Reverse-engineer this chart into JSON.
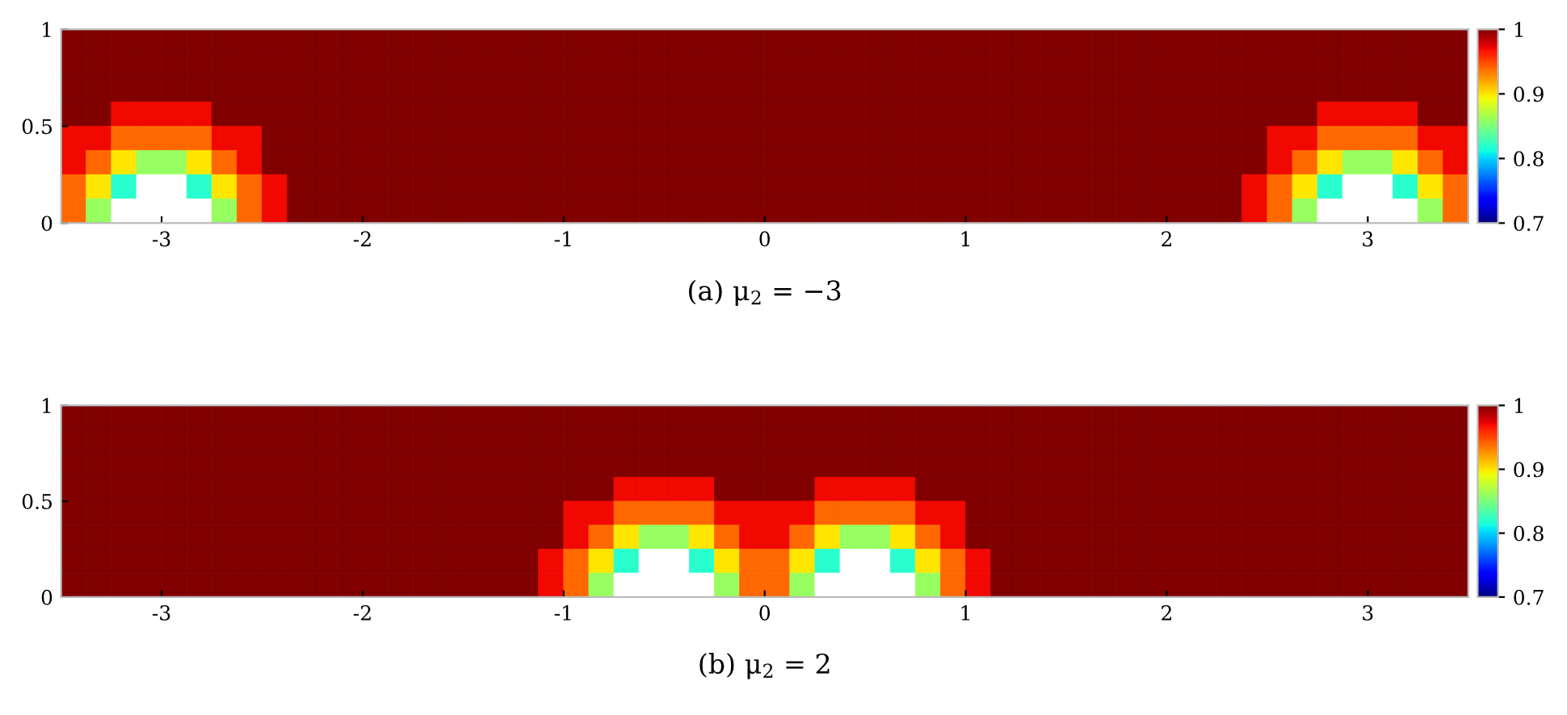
{
  "chart_data": [
    {
      "type": "heatmap",
      "title": "(a) μ$_{2}$ = −3",
      "xlim": [
        -3.5,
        3.5
      ],
      "xticks": [
        -3,
        -2,
        -1,
        0,
        1,
        2,
        3
      ],
      "ylim": [
        0,
        1
      ],
      "yticks": [
        0,
        0.5,
        1
      ],
      "clim": [
        0.7,
        1
      ],
      "cticks": [
        0.7,
        0.8,
        0.9,
        1
      ],
      "cells": [
        [
          1,
          1,
          1,
          1,
          1,
          1,
          1,
          1,
          1,
          1,
          1,
          1,
          1,
          1,
          1,
          1,
          1,
          1,
          1,
          1,
          1,
          1,
          1,
          1,
          1,
          1,
          1,
          1,
          1,
          1,
          1,
          1,
          1,
          1,
          1,
          1,
          1,
          1,
          1,
          1,
          1,
          1,
          1,
          1,
          1,
          1,
          1,
          1,
          1,
          1,
          1,
          1,
          1,
          1,
          1,
          1
        ],
        [
          1,
          1,
          1,
          1,
          1,
          1,
          1,
          1,
          1,
          1,
          1,
          1,
          1,
          1,
          1,
          1,
          1,
          1,
          1,
          1,
          1,
          1,
          1,
          1,
          1,
          1,
          1,
          1,
          1,
          1,
          1,
          1,
          1,
          1,
          1,
          1,
          1,
          1,
          1,
          1,
          1,
          1,
          1,
          1,
          1,
          1,
          1,
          1,
          1,
          1,
          1,
          1,
          1,
          1,
          1,
          1
        ],
        [
          1,
          1,
          1,
          1,
          1,
          1,
          1,
          1,
          1,
          1,
          1,
          1,
          1,
          1,
          1,
          1,
          1,
          1,
          1,
          1,
          1,
          1,
          1,
          1,
          1,
          1,
          1,
          1,
          1,
          1,
          1,
          1,
          1,
          1,
          1,
          1,
          1,
          1,
          1,
          1,
          1,
          1,
          1,
          1,
          1,
          1,
          1,
          1,
          1,
          1,
          1,
          1,
          1,
          1,
          1,
          1
        ],
        [
          1,
          1,
          0.97,
          0.97,
          0.97,
          0.97,
          1,
          1,
          1,
          1,
          1,
          1,
          1,
          1,
          1,
          1,
          1,
          1,
          1,
          1,
          1,
          1,
          1,
          1,
          1,
          1,
          1,
          1,
          1,
          1,
          1,
          1,
          1,
          1,
          1,
          1,
          1,
          1,
          1,
          1,
          1,
          1,
          1,
          1,
          1,
          1,
          1,
          1,
          1,
          1,
          0.97,
          0.97,
          0.97,
          0.97,
          1,
          1
        ],
        [
          0.97,
          0.97,
          0.94,
          0.94,
          0.94,
          0.94,
          0.97,
          0.97,
          1,
          1,
          1,
          1,
          1,
          1,
          1,
          1,
          1,
          1,
          1,
          1,
          1,
          1,
          1,
          1,
          1,
          1,
          1,
          1,
          1,
          1,
          1,
          1,
          1,
          1,
          1,
          1,
          1,
          1,
          1,
          1,
          1,
          1,
          1,
          1,
          1,
          1,
          1,
          1,
          0.97,
          0.97,
          0.94,
          0.94,
          0.94,
          0.94,
          0.97,
          0.97
        ],
        [
          0.97,
          0.94,
          0.9,
          0.86,
          0.86,
          0.9,
          0.94,
          0.97,
          1,
          1,
          1,
          1,
          1,
          1,
          1,
          1,
          1,
          1,
          1,
          1,
          1,
          1,
          1,
          1,
          1,
          1,
          1,
          1,
          1,
          1,
          1,
          1,
          1,
          1,
          1,
          1,
          1,
          1,
          1,
          1,
          1,
          1,
          1,
          1,
          1,
          1,
          1,
          1,
          0.97,
          0.94,
          0.9,
          0.86,
          0.86,
          0.9,
          0.94,
          0.97
        ],
        [
          0.94,
          0.9,
          0.82,
          null,
          null,
          0.82,
          0.9,
          0.94,
          0.97,
          1,
          1,
          1,
          1,
          1,
          1,
          1,
          1,
          1,
          1,
          1,
          1,
          1,
          1,
          1,
          1,
          1,
          1,
          1,
          1,
          1,
          1,
          1,
          1,
          1,
          1,
          1,
          1,
          1,
          1,
          1,
          1,
          1,
          1,
          1,
          1,
          1,
          1,
          0.97,
          0.94,
          0.9,
          0.82,
          null,
          null,
          0.82,
          0.9,
          0.94
        ],
        [
          0.94,
          0.86,
          null,
          null,
          null,
          null,
          0.86,
          0.94,
          0.97,
          1,
          1,
          1,
          1,
          1,
          1,
          1,
          1,
          1,
          1,
          1,
          1,
          1,
          1,
          1,
          1,
          1,
          1,
          1,
          1,
          1,
          1,
          1,
          1,
          1,
          1,
          1,
          1,
          1,
          1,
          1,
          1,
          1,
          1,
          1,
          1,
          1,
          1,
          0.97,
          0.94,
          0.86,
          null,
          null,
          null,
          null,
          0.86,
          0.94
        ]
      ]
    },
    {
      "type": "heatmap",
      "title": "(b) μ$_{2}$ = 2",
      "xlim": [
        -3.5,
        3.5
      ],
      "xticks": [
        -3,
        -2,
        -1,
        0,
        1,
        2,
        3
      ],
      "ylim": [
        0,
        1
      ],
      "yticks": [
        0,
        0.5,
        1
      ],
      "clim": [
        0.7,
        1
      ],
      "cticks": [
        0.7,
        0.8,
        0.9,
        1
      ],
      "cells": [
        [
          1,
          1,
          1,
          1,
          1,
          1,
          1,
          1,
          1,
          1,
          1,
          1,
          1,
          1,
          1,
          1,
          1,
          1,
          1,
          1,
          1,
          1,
          1,
          1,
          1,
          1,
          1,
          1,
          1,
          1,
          1,
          1,
          1,
          1,
          1,
          1,
          1,
          1,
          1,
          1,
          1,
          1,
          1,
          1,
          1,
          1,
          1,
          1,
          1,
          1,
          1,
          1,
          1,
          1,
          1,
          1
        ],
        [
          1,
          1,
          1,
          1,
          1,
          1,
          1,
          1,
          1,
          1,
          1,
          1,
          1,
          1,
          1,
          1,
          1,
          1,
          1,
          1,
          1,
          1,
          1,
          1,
          1,
          1,
          1,
          1,
          1,
          1,
          1,
          1,
          1,
          1,
          1,
          1,
          1,
          1,
          1,
          1,
          1,
          1,
          1,
          1,
          1,
          1,
          1,
          1,
          1,
          1,
          1,
          1,
          1,
          1,
          1,
          1
        ],
        [
          1,
          1,
          1,
          1,
          1,
          1,
          1,
          1,
          1,
          1,
          1,
          1,
          1,
          1,
          1,
          1,
          1,
          1,
          1,
          1,
          1,
          1,
          1,
          1,
          1,
          1,
          1,
          1,
          1,
          1,
          1,
          1,
          1,
          1,
          1,
          1,
          1,
          1,
          1,
          1,
          1,
          1,
          1,
          1,
          1,
          1,
          1,
          1,
          1,
          1,
          1,
          1,
          1,
          1,
          1,
          1
        ],
        [
          1,
          1,
          1,
          1,
          1,
          1,
          1,
          1,
          1,
          1,
          1,
          1,
          1,
          1,
          1,
          1,
          1,
          1,
          1,
          1,
          1,
          1,
          0.97,
          0.97,
          0.97,
          0.97,
          1,
          1,
          1,
          1,
          0.97,
          0.97,
          0.97,
          0.97,
          1,
          1,
          1,
          1,
          1,
          1,
          1,
          1,
          1,
          1,
          1,
          1,
          1,
          1,
          1,
          1,
          1,
          1,
          1,
          1,
          1,
          1
        ],
        [
          1,
          1,
          1,
          1,
          1,
          1,
          1,
          1,
          1,
          1,
          1,
          1,
          1,
          1,
          1,
          1,
          1,
          1,
          1,
          1,
          0.97,
          0.97,
          0.94,
          0.94,
          0.94,
          0.94,
          0.97,
          0.97,
          0.97,
          0.97,
          0.94,
          0.94,
          0.94,
          0.94,
          0.97,
          0.97,
          1,
          1,
          1,
          1,
          1,
          1,
          1,
          1,
          1,
          1,
          1,
          1,
          1,
          1,
          1,
          1,
          1,
          1,
          1,
          1
        ],
        [
          1,
          1,
          1,
          1,
          1,
          1,
          1,
          1,
          1,
          1,
          1,
          1,
          1,
          1,
          1,
          1,
          1,
          1,
          1,
          1,
          0.97,
          0.94,
          0.9,
          0.86,
          0.86,
          0.9,
          0.94,
          0.97,
          0.97,
          0.94,
          0.9,
          0.86,
          0.86,
          0.9,
          0.94,
          0.97,
          1,
          1,
          1,
          1,
          1,
          1,
          1,
          1,
          1,
          1,
          1,
          1,
          1,
          1,
          1,
          1,
          1,
          1,
          1,
          1
        ],
        [
          1,
          1,
          1,
          1,
          1,
          1,
          1,
          1,
          1,
          1,
          1,
          1,
          1,
          1,
          1,
          1,
          1,
          1,
          1,
          0.97,
          0.94,
          0.9,
          0.82,
          null,
          null,
          0.82,
          0.9,
          0.94,
          0.94,
          0.9,
          0.82,
          null,
          null,
          0.82,
          0.9,
          0.94,
          0.97,
          1,
          1,
          1,
          1,
          1,
          1,
          1,
          1,
          1,
          1,
          1,
          1,
          1,
          1,
          1,
          1,
          1,
          1,
          1
        ],
        [
          1,
          1,
          1,
          1,
          1,
          1,
          1,
          1,
          1,
          1,
          1,
          1,
          1,
          1,
          1,
          1,
          1,
          1,
          1,
          0.97,
          0.94,
          0.86,
          null,
          null,
          null,
          null,
          0.86,
          0.94,
          0.94,
          0.86,
          null,
          null,
          null,
          null,
          0.86,
          0.94,
          0.97,
          1,
          1,
          1,
          1,
          1,
          1,
          1,
          1,
          1,
          1,
          1,
          1,
          1,
          1,
          1,
          1,
          1,
          1,
          1
        ]
      ]
    }
  ]
}
